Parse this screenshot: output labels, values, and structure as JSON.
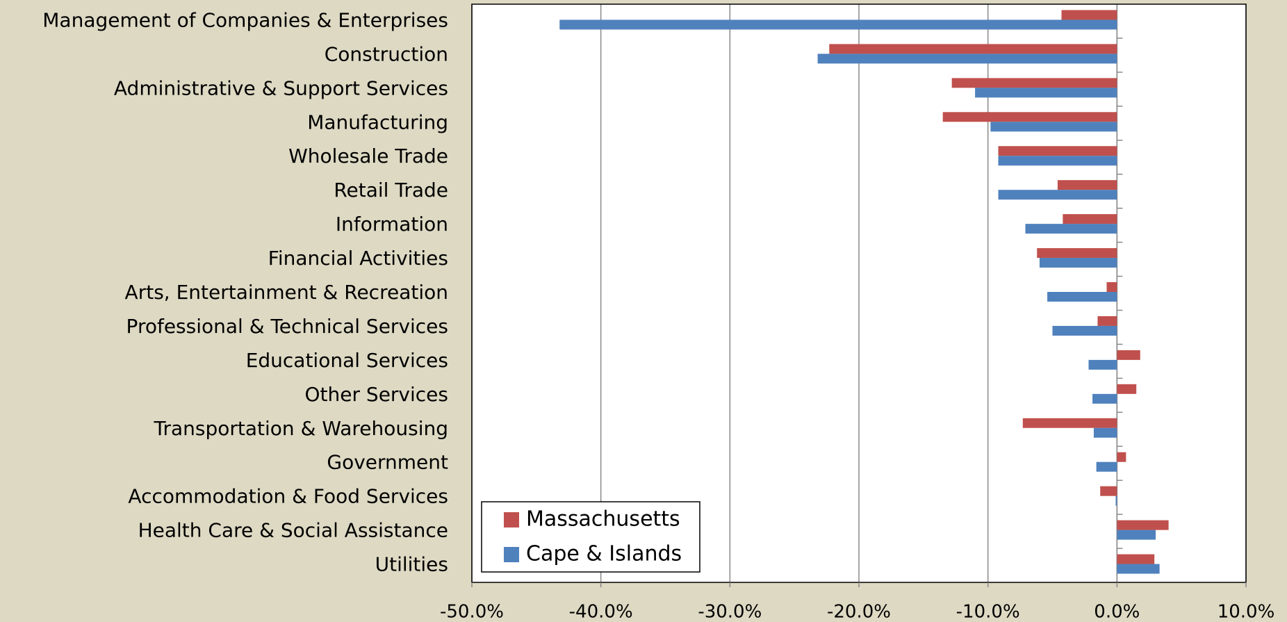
{
  "chart_data": {
    "type": "bar",
    "orientation": "horizontal",
    "categories": [
      "Management of Companies & Enterprises",
      "Construction",
      "Administrative & Support Services",
      "Manufacturing",
      "Wholesale Trade",
      "Retail Trade",
      "Information",
      "Financial Activities",
      "Arts, Entertainment & Recreation",
      "Professional & Technical Services",
      "Educational Services",
      "Other Services",
      "Transportation & Warehousing",
      "Government",
      "Accommodation & Food Services",
      "Health Care & Social Assistance",
      "Utilities"
    ],
    "series": [
      {
        "name": "Massachusetts",
        "color": "#c0504d",
        "values": [
          -4.3,
          -22.3,
          -12.8,
          -13.5,
          -9.2,
          -4.6,
          -4.2,
          -6.2,
          -0.8,
          -1.5,
          1.8,
          1.5,
          -7.3,
          0.7,
          -1.3,
          4.0,
          2.9
        ]
      },
      {
        "name": "Cape & Islands",
        "color": "#4f81bd",
        "values": [
          -43.2,
          -23.2,
          -11.0,
          -9.8,
          -9.2,
          -9.2,
          -7.1,
          -6.0,
          -5.4,
          -5.0,
          -2.2,
          -1.9,
          -1.8,
          -1.6,
          -0.1,
          3.0,
          3.3
        ]
      }
    ],
    "xlim": [
      -50,
      10
    ],
    "xticks": [
      {
        "value": -50,
        "label": "-50.0%"
      },
      {
        "value": -40,
        "label": "-40.0%"
      },
      {
        "value": -30,
        "label": "-30.0%"
      },
      {
        "value": -20,
        "label": "-20.0%"
      },
      {
        "value": -10,
        "label": "-10.0%"
      },
      {
        "value": 0,
        "label": "0.0%"
      },
      {
        "value": 10,
        "label": "10.0%"
      }
    ],
    "grid": true,
    "legend": "lower left"
  }
}
